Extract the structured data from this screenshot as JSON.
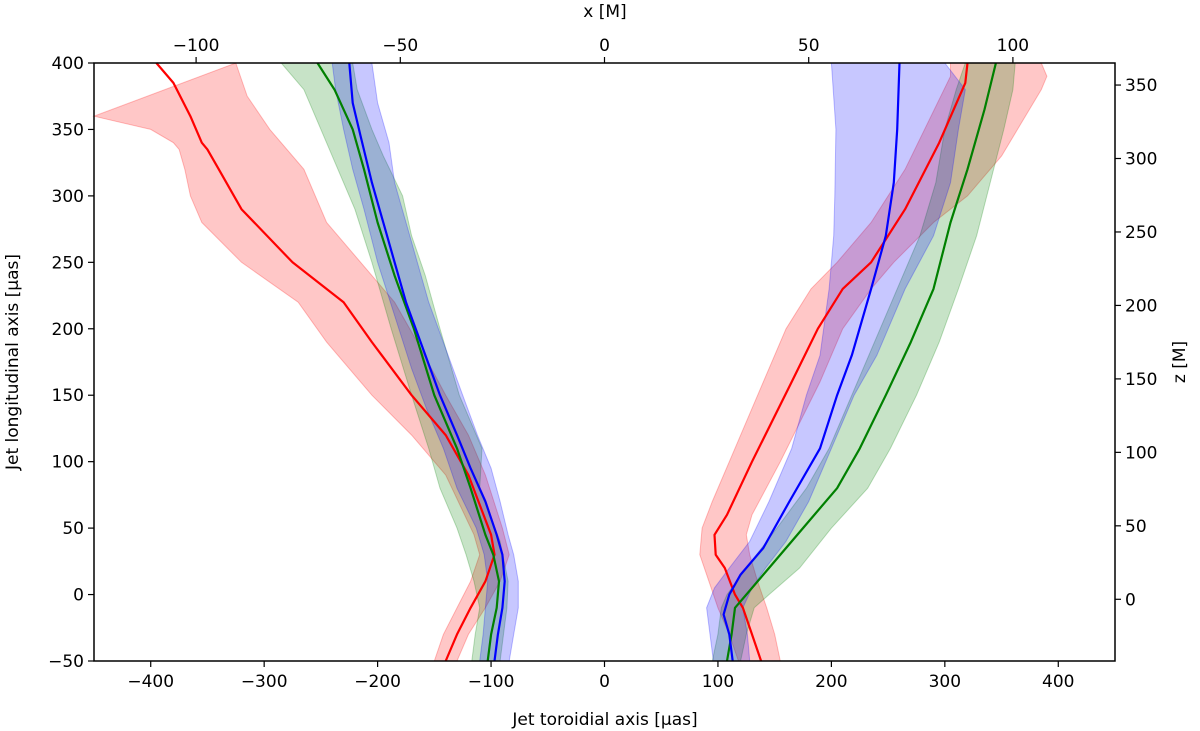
{
  "chart_data": {
    "type": "line",
    "title": "",
    "xlabel": "Jet toroidial axis [μas]",
    "ylabel": "Jet longitudinal axis [μas]",
    "top_xlabel": "x [M]",
    "right_ylabel": "z [M]",
    "xlim": [
      -450,
      450
    ],
    "ylim": [
      -50,
      400
    ],
    "top_xlim": [
      -125,
      125
    ],
    "right_ylim": [
      -42,
      365
    ],
    "xticks": [
      -400,
      -300,
      -200,
      -100,
      0,
      100,
      200,
      300,
      400
    ],
    "xtick_labels": [
      "−400",
      "−300",
      "−200",
      "−100",
      "0",
      "100",
      "200",
      "300",
      "400"
    ],
    "yticks": [
      -50,
      0,
      50,
      100,
      150,
      200,
      250,
      300,
      350,
      400
    ],
    "ytick_labels": [
      "−50",
      "0",
      "50",
      "100",
      "150",
      "200",
      "250",
      "300",
      "350",
      "400"
    ],
    "top_xticks": [
      -100,
      -50,
      0,
      50,
      100
    ],
    "top_xtick_labels": [
      "−100",
      "−50",
      "0",
      "50",
      "100"
    ],
    "right_yticks": [
      0,
      50,
      100,
      150,
      200,
      250,
      300,
      350
    ],
    "right_ytick_labels": [
      "0",
      "50",
      "100",
      "150",
      "200",
      "250",
      "300",
      "350"
    ],
    "series": [
      {
        "name": "red",
        "color": "#ff0000",
        "left_mean": [
          [
            -140,
            -50
          ],
          [
            -130,
            -30
          ],
          [
            -118,
            -10
          ],
          [
            -105,
            10
          ],
          [
            -97,
            30
          ],
          [
            -100,
            45
          ],
          [
            -120,
            90
          ],
          [
            -140,
            120
          ],
          [
            -170,
            150
          ],
          [
            -205,
            190
          ],
          [
            -230,
            220
          ],
          [
            -275,
            250
          ],
          [
            -320,
            290
          ],
          [
            -340,
            320
          ],
          [
            -350,
            335
          ],
          [
            -355,
            340
          ],
          [
            -365,
            360
          ],
          [
            -380,
            385
          ],
          [
            -395,
            400
          ]
        ],
        "left_lower": [
          [
            -150,
            -50
          ],
          [
            -142,
            -30
          ],
          [
            -130,
            -10
          ],
          [
            -118,
            10
          ],
          [
            -110,
            30
          ],
          [
            -115,
            45
          ],
          [
            -140,
            90
          ],
          [
            -170,
            120
          ],
          [
            -205,
            150
          ],
          [
            -245,
            190
          ],
          [
            -270,
            220
          ],
          [
            -320,
            250
          ],
          [
            -355,
            280
          ],
          [
            -365,
            300
          ],
          [
            -370,
            320
          ],
          [
            -375,
            335
          ],
          [
            -380,
            340
          ],
          [
            -400,
            350
          ],
          [
            -450,
            360
          ]
        ],
        "left_upper": [
          [
            -130,
            -50
          ],
          [
            -120,
            -30
          ],
          [
            -105,
            -10
          ],
          [
            -92,
            10
          ],
          [
            -84,
            30
          ],
          [
            -90,
            50
          ],
          [
            -105,
            90
          ],
          [
            -120,
            120
          ],
          [
            -140,
            150
          ],
          [
            -165,
            190
          ],
          [
            -185,
            220
          ],
          [
            -215,
            250
          ],
          [
            -245,
            280
          ],
          [
            -265,
            320
          ],
          [
            -295,
            350
          ],
          [
            -315,
            375
          ],
          [
            -325,
            400
          ]
        ],
        "right_mean": [
          [
            138,
            -50
          ],
          [
            130,
            -30
          ],
          [
            122,
            -10
          ],
          [
            115,
            0
          ],
          [
            106,
            20
          ],
          [
            98,
            30
          ],
          [
            97,
            45
          ],
          [
            108,
            60
          ],
          [
            130,
            100
          ],
          [
            165,
            160
          ],
          [
            188,
            200
          ],
          [
            210,
            230
          ],
          [
            235,
            250
          ],
          [
            265,
            290
          ],
          [
            295,
            340
          ],
          [
            318,
            385
          ],
          [
            320,
            400
          ]
        ],
        "right_lower": [
          [
            118,
            -50
          ],
          [
            110,
            -30
          ],
          [
            100,
            -10
          ],
          [
            92,
            10
          ],
          [
            84,
            30
          ],
          [
            86,
            50
          ],
          [
            95,
            70
          ],
          [
            110,
            100
          ],
          [
            140,
            160
          ],
          [
            160,
            200
          ],
          [
            182,
            230
          ],
          [
            205,
            250
          ],
          [
            235,
            280
          ],
          [
            265,
            320
          ],
          [
            305,
            390
          ],
          [
            305,
            400
          ]
        ],
        "right_upper": [
          [
            155,
            -50
          ],
          [
            150,
            -30
          ],
          [
            143,
            -10
          ],
          [
            135,
            10
          ],
          [
            128,
            30
          ],
          [
            125,
            45
          ],
          [
            130,
            60
          ],
          [
            155,
            100
          ],
          [
            190,
            160
          ],
          [
            210,
            200
          ],
          [
            235,
            230
          ],
          [
            255,
            250
          ],
          [
            290,
            280
          ],
          [
            320,
            300
          ],
          [
            350,
            330
          ],
          [
            385,
            380
          ],
          [
            390,
            390
          ],
          [
            385,
            400
          ]
        ]
      },
      {
        "name": "green",
        "color": "#008000",
        "left_mean": [
          [
            -103,
            -50
          ],
          [
            -100,
            -30
          ],
          [
            -95,
            -10
          ],
          [
            -93,
            10
          ],
          [
            -98,
            30
          ],
          [
            -105,
            45
          ],
          [
            -118,
            80
          ],
          [
            -130,
            110
          ],
          [
            -150,
            150
          ],
          [
            -168,
            200
          ],
          [
            -185,
            240
          ],
          [
            -200,
            280
          ],
          [
            -212,
            320
          ],
          [
            -222,
            350
          ],
          [
            -238,
            380
          ],
          [
            -253,
            400
          ]
        ],
        "left_lower": [
          [
            -117,
            -50
          ],
          [
            -114,
            -30
          ],
          [
            -110,
            -10
          ],
          [
            -115,
            10
          ],
          [
            -122,
            30
          ],
          [
            -130,
            50
          ],
          [
            -145,
            80
          ],
          [
            -155,
            110
          ],
          [
            -170,
            150
          ],
          [
            -188,
            200
          ],
          [
            -205,
            250
          ],
          [
            -220,
            290
          ],
          [
            -235,
            320
          ],
          [
            -250,
            350
          ],
          [
            -265,
            380
          ],
          [
            -285,
            400
          ]
        ],
        "left_upper": [
          [
            -92,
            -50
          ],
          [
            -89,
            -30
          ],
          [
            -86,
            -10
          ],
          [
            -85,
            10
          ],
          [
            -92,
            40
          ],
          [
            -110,
            80
          ],
          [
            -108,
            110
          ],
          [
            -128,
            150
          ],
          [
            -145,
            200
          ],
          [
            -158,
            240
          ],
          [
            -170,
            270
          ],
          [
            -178,
            300
          ],
          [
            -195,
            330
          ],
          [
            -205,
            350
          ],
          [
            -218,
            380
          ],
          [
            -222,
            400
          ]
        ],
        "right_mean": [
          [
            108,
            -50
          ],
          [
            112,
            -30
          ],
          [
            115,
            -10
          ],
          [
            125,
            0
          ],
          [
            145,
            20
          ],
          [
            175,
            50
          ],
          [
            205,
            80
          ],
          [
            225,
            110
          ],
          [
            248,
            150
          ],
          [
            270,
            190
          ],
          [
            290,
            230
          ],
          [
            305,
            280
          ],
          [
            320,
            320
          ],
          [
            335,
            365
          ],
          [
            345,
            400
          ]
        ],
        "right_lower": [
          [
            95,
            -50
          ],
          [
            100,
            -30
          ],
          [
            103,
            -10
          ],
          [
            108,
            0
          ],
          [
            125,
            20
          ],
          [
            152,
            50
          ],
          [
            178,
            80
          ],
          [
            198,
            110
          ],
          [
            218,
            150
          ],
          [
            238,
            190
          ],
          [
            258,
            230
          ],
          [
            278,
            270
          ],
          [
            292,
            310
          ],
          [
            300,
            350
          ],
          [
            310,
            380
          ],
          [
            318,
            400
          ]
        ],
        "right_upper": [
          [
            120,
            -50
          ],
          [
            125,
            -30
          ],
          [
            132,
            -10
          ],
          [
            145,
            0
          ],
          [
            172,
            20
          ],
          [
            200,
            50
          ],
          [
            232,
            80
          ],
          [
            252,
            110
          ],
          [
            275,
            150
          ],
          [
            295,
            190
          ],
          [
            312,
            230
          ],
          [
            328,
            270
          ],
          [
            340,
            310
          ],
          [
            352,
            350
          ],
          [
            360,
            380
          ],
          [
            362,
            400
          ]
        ]
      },
      {
        "name": "blue",
        "color": "#0000ff",
        "left_mean": [
          [
            -97,
            -50
          ],
          [
            -94,
            -30
          ],
          [
            -90,
            -10
          ],
          [
            -88,
            10
          ],
          [
            -90,
            30
          ],
          [
            -95,
            45
          ],
          [
            -105,
            70
          ],
          [
            -118,
            95
          ],
          [
            -130,
            120
          ],
          [
            -145,
            150
          ],
          [
            -160,
            185
          ],
          [
            -175,
            220
          ],
          [
            -185,
            250
          ],
          [
            -195,
            280
          ],
          [
            -205,
            310
          ],
          [
            -215,
            345
          ],
          [
            -222,
            370
          ],
          [
            -225,
            400
          ]
        ],
        "left_lower": [
          [
            -110,
            -50
          ],
          [
            -107,
            -30
          ],
          [
            -105,
            -10
          ],
          [
            -103,
            10
          ],
          [
            -106,
            30
          ],
          [
            -113,
            50
          ],
          [
            -130,
            80
          ],
          [
            -142,
            110
          ],
          [
            -157,
            140
          ],
          [
            -170,
            170
          ],
          [
            -185,
            210
          ],
          [
            -200,
            250
          ],
          [
            -212,
            290
          ],
          [
            -222,
            320
          ],
          [
            -230,
            350
          ],
          [
            -237,
            380
          ],
          [
            -240,
            400
          ]
        ],
        "left_upper": [
          [
            -84,
            -50
          ],
          [
            -80,
            -30
          ],
          [
            -76,
            -10
          ],
          [
            -76,
            10
          ],
          [
            -80,
            30
          ],
          [
            -85,
            45
          ],
          [
            -92,
            70
          ],
          [
            -100,
            95
          ],
          [
            -112,
            120
          ],
          [
            -125,
            150
          ],
          [
            -140,
            185
          ],
          [
            -155,
            220
          ],
          [
            -165,
            250
          ],
          [
            -175,
            280
          ],
          [
            -185,
            310
          ],
          [
            -190,
            340
          ],
          [
            -200,
            370
          ],
          [
            -205,
            400
          ]
        ],
        "right_mean": [
          [
            113,
            -50
          ],
          [
            110,
            -30
          ],
          [
            105,
            -15
          ],
          [
            110,
            0
          ],
          [
            120,
            15
          ],
          [
            140,
            35
          ],
          [
            163,
            70
          ],
          [
            190,
            110
          ],
          [
            205,
            150
          ],
          [
            218,
            180
          ],
          [
            235,
            230
          ],
          [
            248,
            270
          ],
          [
            255,
            310
          ],
          [
            258,
            350
          ],
          [
            260,
            400
          ]
        ],
        "right_lower": [
          [
            96,
            -50
          ],
          [
            93,
            -30
          ],
          [
            90,
            -10
          ],
          [
            97,
            5
          ],
          [
            110,
            20
          ],
          [
            128,
            40
          ],
          [
            145,
            70
          ],
          [
            165,
            110
          ],
          [
            178,
            150
          ],
          [
            190,
            180
          ],
          [
            198,
            230
          ],
          [
            202,
            270
          ],
          [
            203,
            300
          ],
          [
            204,
            350
          ],
          [
            200,
            400
          ]
        ],
        "right_upper": [
          [
            128,
            -50
          ],
          [
            126,
            -30
          ],
          [
            122,
            -10
          ],
          [
            130,
            5
          ],
          [
            142,
            20
          ],
          [
            160,
            40
          ],
          [
            180,
            70
          ],
          [
            200,
            110
          ],
          [
            220,
            150
          ],
          [
            240,
            180
          ],
          [
            265,
            230
          ],
          [
            290,
            270
          ],
          [
            305,
            310
          ],
          [
            312,
            350
          ],
          [
            318,
            380
          ],
          [
            300,
            400
          ]
        ]
      }
    ]
  }
}
